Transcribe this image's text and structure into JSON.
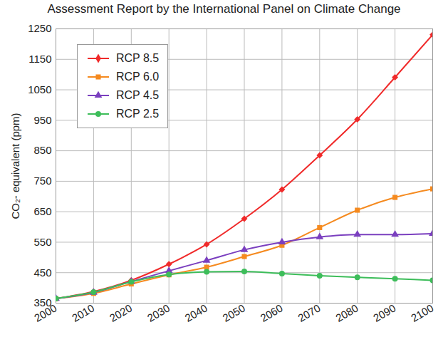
{
  "chart_data": {
    "type": "line",
    "title": "Assessment Report by the International Panel on Climate Change",
    "y_label": "CO₂- equivalent (ppm)",
    "x": [
      2000,
      2010,
      2020,
      2030,
      2040,
      2050,
      2060,
      2070,
      2080,
      2090,
      2100
    ],
    "series": [
      {
        "name": "RCP 8.5",
        "color": "#f02a2a",
        "marker": "diamond",
        "values": [
          365,
          388,
          425,
          478,
          543,
          627,
          723,
          835,
          953,
          1091,
          1231
        ]
      },
      {
        "name": "RCP 6.0",
        "color": "#f58a1f",
        "marker": "square",
        "values": [
          365,
          382,
          413,
          443,
          468,
          503,
          540,
          598,
          655,
          697,
          725
        ]
      },
      {
        "name": "RCP 4.5",
        "color": "#7a3fbf",
        "marker": "triangle",
        "values": [
          365,
          385,
          421,
          456,
          490,
          525,
          550,
          567,
          575,
          575,
          578
        ]
      },
      {
        "name": "RCP 2.5",
        "color": "#3dbd5a",
        "marker": "circle",
        "values": [
          365,
          386,
          420,
          444,
          453,
          454,
          447,
          440,
          435,
          430,
          425
        ]
      }
    ],
    "xlim": [
      2000,
      2100
    ],
    "xticks": [
      2000,
      2010,
      2020,
      2030,
      2040,
      2050,
      2060,
      2070,
      2080,
      2090,
      2100
    ],
    "ylim": [
      350,
      1250
    ],
    "yticks": [
      350,
      450,
      550,
      650,
      750,
      850,
      950,
      1050,
      1150,
      1250
    ],
    "grid": true,
    "legend": "top-left"
  }
}
